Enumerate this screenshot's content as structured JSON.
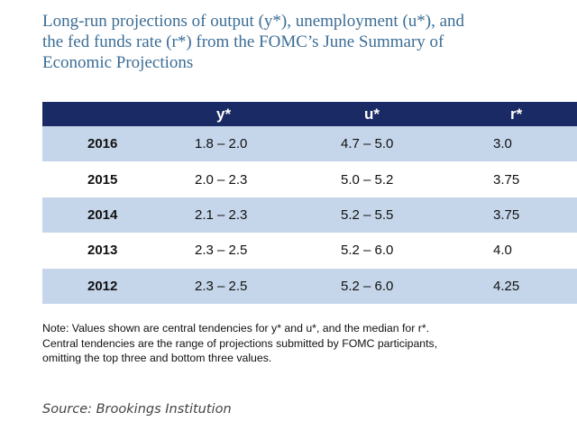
{
  "title_lines": [
    "Long-run projections of output (y*), unemployment (u*), and",
    "the fed funds rate (r*) from the FOMC’s June Summary of",
    "Economic Projections"
  ],
  "table": {
    "headers": [
      "",
      "y*",
      "u*",
      "r*"
    ],
    "rows": [
      {
        "year": "2016",
        "y": "1.8 – 2.0",
        "u": "4.7 – 5.0",
        "r": "3.0"
      },
      {
        "year": "2015",
        "y": "2.0 – 2.3",
        "u": "5.0 – 5.2",
        "r": "3.75"
      },
      {
        "year": "2014",
        "y": "2.1 – 2.3",
        "u": "5.2 – 5.5",
        "r": "3.75"
      },
      {
        "year": "2013",
        "y": "2.3 – 2.5",
        "u": "5.2 – 6.0",
        "r": "4.0"
      },
      {
        "year": "2012",
        "y": "2.3 – 2.5",
        "u": "5.2 – 6.0",
        "r": "4.25"
      }
    ]
  },
  "note_lines": [
    "Note:  Values shown are central tendencies for y* and u*, and the median for r*.",
    "Central tendencies are the range of projections submitted by FOMC participants,",
    "omitting the top three and bottom three values."
  ],
  "source": "Source: Brookings Institution",
  "colors": {
    "title": "#3b6d96",
    "header_bg": "#1a2a64",
    "row_shaded": "#c5d6ea"
  }
}
